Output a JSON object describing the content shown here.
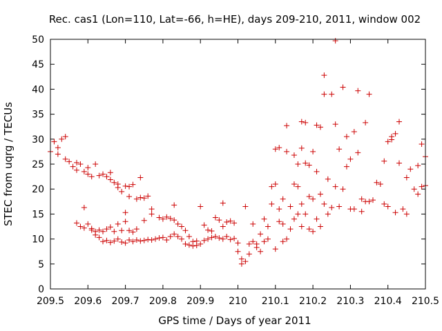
{
  "chart_data": {
    "type": "scatter",
    "title": "Rec. cas1 (Lon=110, Lat=-66, h=HE), days 209-210, 2011, window 002",
    "xlabel": "GPS time / Days of year 2011",
    "ylabel": "STEC from uqrg / TECUs",
    "xlim": [
      209.5,
      210.5
    ],
    "ylim": [
      0,
      50
    ],
    "x_ticks": [
      209.5,
      209.6,
      209.7,
      209.8,
      209.9,
      210,
      210.1,
      210.2,
      210.3,
      210.4,
      210.5
    ],
    "x_tick_labels": [
      "209.5",
      "209.6",
      "209.7",
      "209.8",
      "209.9",
      "210",
      "210.1",
      "210.2",
      "210.3",
      "210.4",
      "210.5"
    ],
    "y_ticks": [
      0,
      5,
      10,
      15,
      20,
      25,
      30,
      35,
      40,
      45,
      50
    ],
    "y_tick_labels": [
      "0",
      "5",
      "10",
      "15",
      "20",
      "25",
      "30",
      "35",
      "40",
      "45",
      "50"
    ],
    "marker": "+",
    "marker_color": "#cc0000",
    "series": [
      {
        "name": "STEC",
        "points": [
          [
            209.5,
            27.5
          ],
          [
            209.51,
            29.5
          ],
          [
            209.52,
            28.3
          ],
          [
            209.52,
            27.0
          ],
          [
            209.53,
            30.0
          ],
          [
            209.54,
            30.5
          ],
          [
            209.54,
            26.0
          ],
          [
            209.55,
            25.5
          ],
          [
            209.56,
            24.5
          ],
          [
            209.57,
            25.3
          ],
          [
            209.57,
            23.8
          ],
          [
            209.58,
            25.0
          ],
          [
            209.59,
            23.5
          ],
          [
            209.6,
            24.3
          ],
          [
            209.6,
            23.0
          ],
          [
            209.61,
            22.5
          ],
          [
            209.62,
            25.0
          ],
          [
            209.63,
            22.7
          ],
          [
            209.64,
            23.0
          ],
          [
            209.65,
            22.5
          ],
          [
            209.66,
            23.3
          ],
          [
            209.66,
            21.9
          ],
          [
            209.67,
            21.3
          ],
          [
            209.68,
            20.3
          ],
          [
            209.68,
            21.0
          ],
          [
            209.69,
            19.5
          ],
          [
            209.7,
            20.6
          ],
          [
            209.71,
            20.5
          ],
          [
            209.71,
            18.5
          ],
          [
            209.72,
            20.9
          ],
          [
            209.73,
            18.0
          ],
          [
            209.74,
            22.3
          ],
          [
            209.74,
            18.3
          ],
          [
            209.75,
            18.2
          ],
          [
            209.76,
            18.6
          ],
          [
            209.77,
            16.0
          ],
          [
            209.59,
            16.3
          ],
          [
            209.57,
            13.2
          ],
          [
            209.58,
            12.5
          ],
          [
            209.59,
            12.2
          ],
          [
            209.6,
            13.0
          ],
          [
            209.61,
            12.1
          ],
          [
            209.62,
            11.5
          ],
          [
            209.63,
            11.8
          ],
          [
            209.64,
            11.5
          ],
          [
            209.65,
            12.0
          ],
          [
            209.66,
            12.4
          ],
          [
            209.67,
            11.5
          ],
          [
            209.68,
            13.0
          ],
          [
            209.69,
            11.7
          ],
          [
            209.7,
            13.5
          ],
          [
            209.7,
            15.3
          ],
          [
            209.71,
            11.7
          ],
          [
            209.72,
            11.4
          ],
          [
            209.73,
            12.0
          ],
          [
            209.75,
            13.7
          ],
          [
            209.77,
            15.0
          ],
          [
            209.79,
            14.3
          ],
          [
            209.8,
            14.0
          ],
          [
            209.81,
            14.4
          ],
          [
            209.82,
            14.1
          ],
          [
            209.83,
            13.8
          ],
          [
            209.83,
            16.8
          ],
          [
            209.84,
            13.0
          ],
          [
            209.61,
            11.8
          ],
          [
            209.62,
            10.8
          ],
          [
            209.63,
            10.3
          ],
          [
            209.64,
            9.5
          ],
          [
            209.65,
            9.7
          ],
          [
            209.66,
            9.3
          ],
          [
            209.67,
            9.6
          ],
          [
            209.68,
            10.0
          ],
          [
            209.69,
            9.4
          ],
          [
            209.7,
            9.2
          ],
          [
            209.71,
            9.8
          ],
          [
            209.72,
            9.5
          ],
          [
            209.73,
            9.8
          ],
          [
            209.74,
            9.6
          ],
          [
            209.75,
            9.7
          ],
          [
            209.76,
            9.9
          ],
          [
            209.77,
            9.8
          ],
          [
            209.78,
            10.0
          ],
          [
            209.79,
            10.2
          ],
          [
            209.8,
            10.3
          ],
          [
            209.81,
            9.8
          ],
          [
            209.82,
            10.5
          ],
          [
            209.83,
            11.0
          ],
          [
            209.84,
            10.5
          ],
          [
            209.85,
            10.0
          ],
          [
            209.86,
            9.0
          ],
          [
            209.87,
            8.8
          ],
          [
            209.88,
            8.6
          ],
          [
            209.89,
            8.7
          ],
          [
            209.9,
            9.0
          ],
          [
            209.91,
            9.7
          ],
          [
            209.92,
            10.0
          ],
          [
            209.93,
            10.3
          ],
          [
            209.94,
            10.5
          ],
          [
            209.95,
            10.2
          ],
          [
            209.96,
            10.0
          ],
          [
            209.97,
            10.5
          ],
          [
            209.98,
            9.9
          ],
          [
            209.99,
            10.1
          ],
          [
            209.85,
            12.5
          ],
          [
            209.86,
            11.7
          ],
          [
            209.87,
            10.5
          ],
          [
            209.88,
            9.5
          ],
          [
            209.89,
            9.6
          ],
          [
            209.9,
            16.5
          ],
          [
            209.91,
            12.8
          ],
          [
            209.92,
            11.8
          ],
          [
            209.93,
            11.6
          ],
          [
            209.94,
            14.3
          ],
          [
            209.95,
            13.8
          ],
          [
            209.96,
            17.2
          ],
          [
            209.96,
            12.5
          ],
          [
            209.97,
            13.4
          ],
          [
            209.98,
            13.6
          ],
          [
            209.99,
            13.2
          ],
          [
            210.0,
            9.2
          ],
          [
            210.0,
            7.5
          ],
          [
            210.01,
            6.0
          ],
          [
            210.01,
            5.0
          ],
          [
            210.02,
            5.5
          ],
          [
            210.02,
            16.5
          ],
          [
            210.03,
            7.0
          ],
          [
            210.03,
            9.0
          ],
          [
            210.04,
            9.5
          ],
          [
            210.04,
            13.0
          ],
          [
            210.05,
            9.0
          ],
          [
            210.05,
            8.3
          ],
          [
            210.06,
            11.0
          ],
          [
            210.06,
            7.5
          ],
          [
            210.07,
            9.5
          ],
          [
            210.07,
            14.0
          ],
          [
            210.08,
            12.5
          ],
          [
            210.08,
            10.0
          ],
          [
            210.09,
            17.0
          ],
          [
            210.09,
            20.5
          ],
          [
            210.1,
            21.0
          ],
          [
            210.1,
            28.0
          ],
          [
            210.1,
            8.0
          ],
          [
            210.11,
            13.5
          ],
          [
            210.11,
            16.0
          ],
          [
            210.11,
            28.3
          ],
          [
            210.12,
            9.5
          ],
          [
            210.12,
            13.0
          ],
          [
            210.12,
            18.0
          ],
          [
            210.13,
            32.7
          ],
          [
            210.13,
            27.5
          ],
          [
            210.13,
            10.0
          ],
          [
            210.14,
            12.0
          ],
          [
            210.14,
            16.5
          ],
          [
            210.15,
            14.0
          ],
          [
            210.15,
            21.0
          ],
          [
            210.15,
            26.8
          ],
          [
            210.16,
            15.0
          ],
          [
            210.16,
            20.5
          ],
          [
            210.16,
            25.0
          ],
          [
            210.17,
            12.5
          ],
          [
            210.17,
            17.0
          ],
          [
            210.17,
            28.2
          ],
          [
            210.17,
            33.5
          ],
          [
            210.18,
            15.0
          ],
          [
            210.18,
            25.2
          ],
          [
            210.18,
            33.3
          ],
          [
            210.19,
            12.0
          ],
          [
            210.19,
            18.5
          ],
          [
            210.19,
            24.8
          ],
          [
            210.2,
            11.5
          ],
          [
            210.2,
            18.0
          ],
          [
            210.2,
            27.5
          ],
          [
            210.21,
            14.0
          ],
          [
            210.21,
            23.5
          ],
          [
            210.21,
            32.8
          ],
          [
            210.22,
            12.5
          ],
          [
            210.22,
            19.0
          ],
          [
            210.22,
            32.4
          ],
          [
            210.23,
            39.0
          ],
          [
            210.23,
            42.8
          ],
          [
            210.23,
            17.0
          ],
          [
            210.24,
            15.0
          ],
          [
            210.24,
            22.0
          ],
          [
            210.25,
            39.0
          ],
          [
            210.25,
            16.3
          ],
          [
            210.26,
            33.0
          ],
          [
            210.26,
            49.7
          ],
          [
            210.26,
            20.5
          ],
          [
            210.27,
            16.5
          ],
          [
            210.27,
            28.0
          ],
          [
            210.28,
            40.4
          ],
          [
            210.28,
            20.0
          ],
          [
            210.29,
            24.5
          ],
          [
            210.29,
            30.5
          ],
          [
            210.3,
            16.0
          ],
          [
            210.3,
            26.0
          ],
          [
            210.31,
            31.5
          ],
          [
            210.31,
            16.0
          ],
          [
            210.32,
            39.7
          ],
          [
            210.32,
            27.3
          ],
          [
            210.33,
            15.5
          ],
          [
            210.33,
            18.0
          ],
          [
            210.34,
            33.3
          ],
          [
            210.34,
            17.5
          ],
          [
            210.35,
            39.0
          ],
          [
            210.35,
            17.5
          ],
          [
            210.36,
            17.8
          ],
          [
            210.37,
            21.3
          ],
          [
            210.38,
            21.0
          ],
          [
            210.39,
            25.6
          ],
          [
            210.39,
            17.0
          ],
          [
            210.4,
            16.5
          ],
          [
            210.41,
            30.5
          ],
          [
            210.41,
            29.9
          ],
          [
            210.42,
            31.1
          ],
          [
            210.42,
            15.3
          ],
          [
            210.43,
            33.5
          ],
          [
            210.43,
            25.2
          ],
          [
            210.44,
            16.0
          ],
          [
            210.45,
            22.3
          ],
          [
            210.45,
            15.0
          ],
          [
            210.46,
            24.0
          ],
          [
            210.47,
            20.0
          ],
          [
            210.48,
            19.0
          ],
          [
            210.48,
            24.7
          ],
          [
            210.49,
            29.0
          ],
          [
            210.49,
            20.5
          ],
          [
            210.5,
            20.7
          ],
          [
            210.5,
            26.5
          ],
          [
            210.4,
            29.5
          ]
        ]
      }
    ]
  }
}
